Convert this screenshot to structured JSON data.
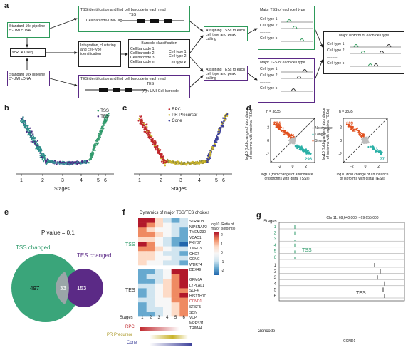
{
  "panel_a": {
    "label": "a",
    "in5": "Standard 10x pipeline\n5′-UMI cDNA",
    "in3": "Standard 10x pipeline\n3′-UMI cDNA",
    "scrcat": "scRCAT-seq",
    "tss_box": "TSS identification and find cell barcode in each read",
    "tss_tag": "TSS",
    "tss_read": "Cell barcode-UMI-Tag",
    "integ": "Integration, clustering\nand cell-type\nidentification",
    "bc_title": "Barcode classification",
    "bc_items": [
      "Cell barcode 1",
      "Cell barcode 2",
      "Cell barcode 3",
      "Cell barcode n"
    ],
    "bc_types": [
      "Cell type 1",
      "Cell type 2",
      "Cell type k"
    ],
    "tes_box": "TES identification and find cell barcode in each read",
    "tes_tag": "TES",
    "tes_read": "(A)n-UMI-Cell barcode",
    "assign_tss": "Assigning TSSs to each\ncell type and peak calling",
    "assign_tes": "Assigning TESs to each\ncell type and peak calling",
    "major_tss": "Major TSS of each cell type",
    "major_tes": "Major TES of each cell type",
    "major_iso": "Major isoform of each cell type",
    "ct_rows": [
      "Cell type 1",
      "Cell type 2",
      "...........",
      "Cell type k"
    ]
  },
  "panel_b": {
    "label": "b",
    "legend": [
      "TSS",
      "TES"
    ],
    "xlabel": "Stages",
    "colors": {
      "TSS": "#2e9a6a",
      "TES": "#4b2783"
    }
  },
  "panel_c": {
    "label": "c",
    "legend": [
      "RPC",
      "PR Precursor",
      "Cone"
    ],
    "xlabel": "Stages",
    "colors": {
      "RPC": "#c0272d",
      "PR Precursor": "#c9b32a",
      "Cone": "#3b3f9a"
    }
  },
  "ticks_bc": [
    "1",
    "2",
    "3",
    "4",
    "5",
    "6"
  ],
  "panel_d": {
    "label": "d",
    "plots": [
      {
        "n": "n = 3835",
        "top": "234",
        "bottom": "296"
      },
      {
        "n": "n = 3835",
        "top": "109",
        "bottom": "77"
      }
    ],
    "ylabel1": "log10 (fold change of abundance\nof isoforms with proximal TSSs)",
    "ylabel2": "log10 (fold change of abundance\nof isoforms with proximal TESs)",
    "xlabel1": "log10 (fold change of abundance\nof isoforms with distal TSSs)",
    "xlabel2": "log10 (fold change of abundance\nof isoforms with distal TESs)",
    "xticks": [
      "-2",
      "0",
      "2"
    ],
    "yticks": [
      "2",
      "0",
      "-2"
    ],
    "legend": [
      "No change",
      "Longer",
      "Shorter"
    ]
  },
  "panel_e": {
    "label": "e",
    "pvalue": "P value = 0.1",
    "tss": "TSS changed",
    "tes": "TES changed",
    "only_tss": "497",
    "both": "33",
    "only_tes": "153"
  },
  "panel_f": {
    "label": "f",
    "title": "Dynamics of major TSS/TES choices",
    "scale_label": "log10 (Ratio of\nmajor isoforms)",
    "scale_ticks": [
      "2",
      "1",
      "0",
      "-1",
      "-2"
    ],
    "tss_label": "TSS",
    "tes_label": "TES",
    "tss_genes": [
      "STRADB",
      "NIPSNAP2",
      "TMEM230",
      "VDAC1",
      "FXYD7",
      "TMED3",
      "CHD7",
      "CCNC",
      "WDR74",
      "DDX49"
    ],
    "tes_genes": [
      "GPM6A",
      "LYPLAL1",
      "SDF4",
      "HIST1H1C",
      "CCND1",
      "SRSF5",
      "SON",
      "VCP",
      "MRPS31",
      "TRIM44"
    ],
    "highlight": "CCND1",
    "stages_label": "Stages",
    "stages": [
      "1",
      "2",
      "3",
      "4",
      "5",
      "6"
    ],
    "bars": [
      "RPC",
      "PR Precursor",
      "Cone"
    ]
  },
  "panel_g": {
    "label": "g",
    "stages_label": "Stages",
    "coords": "Chr 11: 69,640,000 ~ 69,655,000",
    "rows_tss": [
      "1",
      "2",
      "3",
      "4",
      "5",
      "6"
    ],
    "rows_tes": [
      "1",
      "2",
      "3",
      "4",
      "5",
      "6"
    ],
    "tss": "TSS",
    "tes": "TES",
    "gencode": "Gencode",
    "gene": "CCND1"
  }
}
